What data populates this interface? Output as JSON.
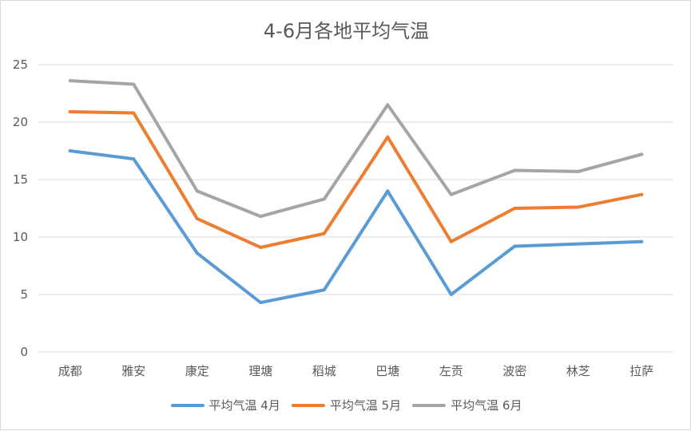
{
  "chart_data": {
    "type": "line",
    "title": "4-6月各地平均气温",
    "categories": [
      "成都",
      "雅安",
      "康定",
      "理塘",
      "稻城",
      "巴塘",
      "左贡",
      "波密",
      "林芝",
      "拉萨"
    ],
    "ylim": [
      0,
      25
    ],
    "yticks": [
      0,
      5,
      10,
      15,
      20,
      25
    ],
    "grid": true,
    "legend_position": "bottom",
    "series": [
      {
        "name": "平均气温 4月",
        "color": "#5b9bd5",
        "values": [
          17.5,
          16.8,
          8.6,
          4.3,
          5.4,
          14.0,
          5.0,
          9.2,
          9.4,
          9.6
        ]
      },
      {
        "name": "平均气温 5月",
        "color": "#ed7d31",
        "values": [
          20.9,
          20.8,
          11.6,
          9.1,
          10.3,
          18.7,
          9.6,
          12.5,
          12.6,
          13.7
        ]
      },
      {
        "name": "平均气温 6月",
        "color": "#a5a5a5",
        "values": [
          23.6,
          23.3,
          14.0,
          11.8,
          13.3,
          21.5,
          13.7,
          15.8,
          15.7,
          17.2
        ]
      }
    ]
  }
}
